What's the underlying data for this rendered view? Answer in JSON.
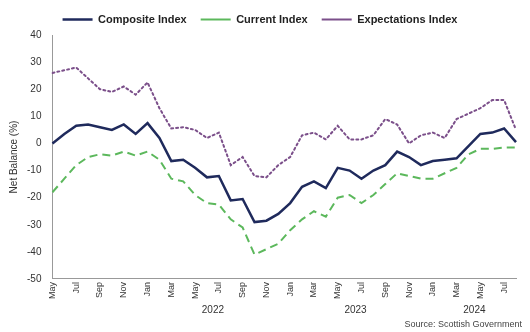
{
  "chart_data": {
    "type": "line",
    "y_label": "Net Balance (%)",
    "annotations": [
      "Source: Scottish Government"
    ],
    "categories": [
      "May",
      null,
      "Jul",
      null,
      "Sep",
      null,
      "Nov",
      null,
      "Jan",
      null,
      "Mar",
      null,
      "May",
      null,
      "Jul",
      null,
      "Sep",
      null,
      "Nov",
      null,
      "Jan",
      null,
      "Mar",
      null,
      "May",
      null,
      "Jul",
      null,
      "Sep",
      null,
      "Nov",
      null,
      "Jan",
      null,
      "Mar",
      null,
      "May",
      null,
      "Jul",
      null
    ],
    "x_groups": [
      {
        "label": null,
        "count": 8
      },
      {
        "label": "2022",
        "count": 12
      },
      {
        "label": "2023",
        "count": 12
      },
      {
        "label": "2024",
        "count": 8
      }
    ],
    "series": [
      {
        "name": "Composite Index",
        "color": "#1f2a5c",
        "line_style": "solid",
        "values": [
          0,
          3.5,
          6.5,
          7,
          6,
          5,
          7,
          3.5,
          7.5,
          2,
          -6.5,
          -6,
          -9,
          -12.5,
          -12,
          -21,
          -20.5,
          -29,
          -28.5,
          -26,
          -22,
          -16,
          -14,
          -16.5,
          -9,
          -10,
          -13,
          -10,
          -8,
          -3,
          -5,
          -8,
          -6.5,
          -6,
          -5.5,
          -1,
          3.5,
          4,
          5.5,
          0.5
        ]
      },
      {
        "name": "Current Index",
        "color": "#5cb85c",
        "line_style": "dashed",
        "values": [
          -18,
          -13,
          -8,
          -5,
          -4,
          -4.5,
          -3,
          -4.5,
          -3,
          -6,
          -13,
          -14,
          -19,
          -22,
          -22.5,
          -28,
          -31,
          -41,
          -39,
          -37,
          -32,
          -28,
          -25,
          -27,
          -20,
          -19,
          -22,
          -19,
          -15,
          -11,
          -12,
          -13,
          -13,
          -11,
          -9,
          -4,
          -2,
          -2,
          -1.5,
          -1.5
        ]
      },
      {
        "name": "Expectations Index",
        "color": "#7b4f8a",
        "line_style": "dotted",
        "values": [
          26,
          27,
          28,
          24,
          20,
          19,
          21,
          18,
          22.5,
          13,
          5.5,
          6,
          5,
          2,
          4,
          -8,
          -5,
          -12,
          -12.5,
          -8,
          -5,
          3,
          4,
          1.5,
          6.5,
          1.5,
          1.5,
          3,
          9,
          7,
          0,
          3,
          4,
          2,
          9,
          11,
          13,
          16,
          16,
          5
        ]
      }
    ],
    "ylim": [
      -50,
      40
    ],
    "yticks": [
      -50,
      -40,
      -30,
      -20,
      -10,
      0,
      10,
      20,
      30,
      40
    ],
    "grid": false,
    "legend": "top"
  }
}
